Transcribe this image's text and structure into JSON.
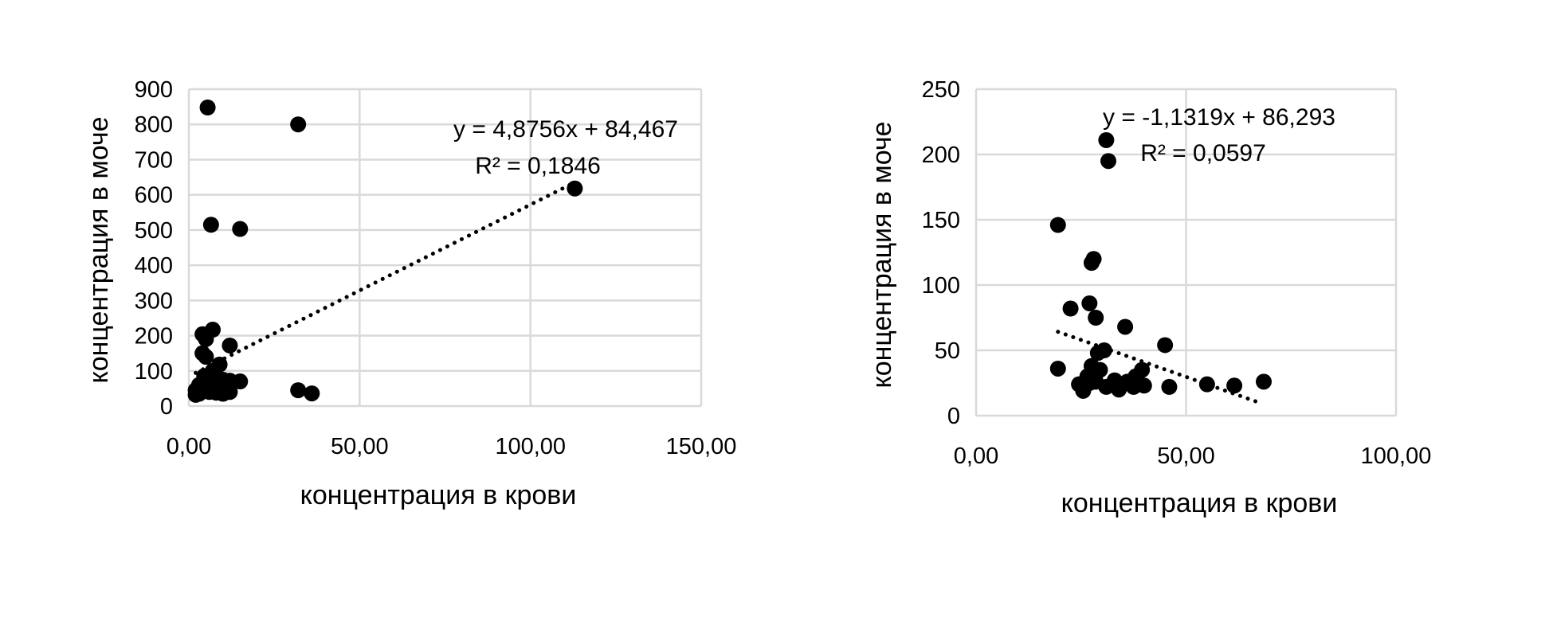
{
  "chart_data": [
    {
      "type": "scatter",
      "xlabel": "концентрация в крови",
      "ylabel": "концентрация в моче",
      "xlim": [
        0,
        150
      ],
      "ylim": [
        0,
        900
      ],
      "x_ticks": [
        "0,00",
        "50,00",
        "100,00",
        "150,00"
      ],
      "y_ticks": [
        "0",
        "100",
        "200",
        "300",
        "400",
        "500",
        "600",
        "700",
        "800",
        "900"
      ],
      "grid": true,
      "marker_color": "#000000",
      "trendline": {
        "style": "dotted",
        "slope": 4.8756,
        "intercept": 84.467,
        "x_range": [
          2,
          113
        ],
        "equation": "y = 4,8756x + 84,467",
        "r_squared": "R² = 0,1846"
      },
      "series": [
        {
          "points": [
            [
              5.5,
              848
            ],
            [
              32,
              800
            ],
            [
              113,
              618
            ],
            [
              6.5,
              515
            ],
            [
              15,
              503
            ],
            [
              4,
              204
            ],
            [
              7,
              217
            ],
            [
              5,
              190
            ],
            [
              12,
              172
            ],
            [
              4,
              150
            ],
            [
              5,
              140
            ],
            [
              9,
              118
            ],
            [
              7,
              100
            ],
            [
              4.5,
              85
            ],
            [
              8,
              80
            ],
            [
              10,
              75
            ],
            [
              12,
              72
            ],
            [
              15,
              70
            ],
            [
              6,
              65
            ],
            [
              3,
              60
            ],
            [
              5,
              55
            ],
            [
              7,
              52
            ],
            [
              9,
              50
            ],
            [
              11,
              48
            ],
            [
              2,
              45
            ],
            [
              4,
              42
            ],
            [
              6,
              40
            ],
            [
              8,
              38
            ],
            [
              3,
              35
            ],
            [
              2,
              32
            ],
            [
              10,
              35
            ],
            [
              12,
              40
            ],
            [
              32,
              45
            ],
            [
              36,
              36
            ]
          ]
        }
      ]
    },
    {
      "type": "scatter",
      "xlabel": "концентрация в крови",
      "ylabel": "концентрация в моче",
      "xlim": [
        0,
        100
      ],
      "ylim": [
        0,
        250
      ],
      "x_ticks": [
        "0,00",
        "50,00",
        "100,00"
      ],
      "y_ticks": [
        "0",
        "50",
        "100",
        "150",
        "200",
        "250"
      ],
      "grid": true,
      "marker_color": "#000000",
      "trendline": {
        "style": "dotted",
        "slope": -1.1319,
        "intercept": 86.293,
        "x_range": [
          19.5,
          67
        ],
        "equation": "y = -1,1319x + 86,293",
        "r_squared": "R² = 0,0597"
      },
      "series": [
        {
          "points": [
            [
              31,
              211
            ],
            [
              31.5,
              195
            ],
            [
              19.5,
              146
            ],
            [
              28,
              120
            ],
            [
              27.5,
              117
            ],
            [
              27,
              86
            ],
            [
              22.5,
              82
            ],
            [
              28.5,
              75
            ],
            [
              35.5,
              68
            ],
            [
              45,
              54
            ],
            [
              30.5,
              50
            ],
            [
              29,
              48
            ],
            [
              19.5,
              36
            ],
            [
              27.5,
              38
            ],
            [
              29.5,
              35
            ],
            [
              39.5,
              35
            ],
            [
              26.5,
              30
            ],
            [
              33,
              27
            ],
            [
              36,
              26
            ],
            [
              38,
              30
            ],
            [
              24.5,
              24
            ],
            [
              27,
              25
            ],
            [
              28.5,
              26
            ],
            [
              31,
              22
            ],
            [
              34,
              20
            ],
            [
              37.5,
              22
            ],
            [
              40,
              23
            ],
            [
              25.5,
              19
            ],
            [
              46,
              22
            ],
            [
              55,
              24
            ],
            [
              61.5,
              23
            ],
            [
              68.5,
              26
            ]
          ]
        }
      ]
    }
  ]
}
